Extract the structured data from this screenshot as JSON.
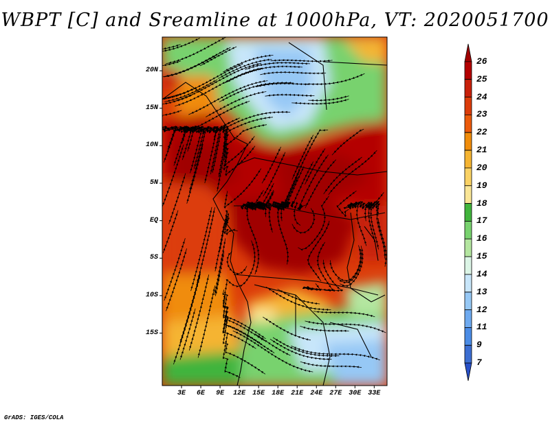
{
  "title": "WBPT [C] and Sreamline at 1000hPa, VT: 2020051700",
  "footer": "GrADS: IGES/COLA",
  "map": {
    "lon_range": [
      0,
      35
    ],
    "lat_range": [
      -22,
      24.5
    ],
    "y_axis_labels": [
      "20N",
      "15N",
      "10N",
      "5N",
      "EQ",
      "5S",
      "10S",
      "15S"
    ],
    "y_axis_values": [
      20,
      15,
      10,
      5,
      0,
      -5,
      -10,
      -15
    ],
    "x_axis_labels": [
      "3E",
      "6E",
      "9E",
      "12E",
      "15E",
      "18E",
      "21E",
      "24E",
      "27E",
      "30E",
      "33E"
    ],
    "x_axis_values": [
      3,
      6,
      9,
      12,
      15,
      18,
      21,
      24,
      27,
      30,
      33
    ]
  },
  "colorbar": {
    "labels": [
      "26",
      "25",
      "24",
      "23",
      "22",
      "21",
      "20",
      "19",
      "18",
      "17",
      "16",
      "15",
      "14",
      "13",
      "12",
      "11",
      "9",
      "7"
    ],
    "colors": [
      "#a00000",
      "#b40000",
      "#c8200a",
      "#dc3c0a",
      "#ec5a0a",
      "#f08c0a",
      "#f5b432",
      "#fad264",
      "#fae696",
      "#41b43c",
      "#78d26e",
      "#b4e6a0",
      "#dcf5e6",
      "#c8e6fa",
      "#96c8f5",
      "#6eaaf0",
      "#4b8ce6",
      "#3c6ed2",
      "#2850c8"
    ]
  },
  "colors": {
    "deep_red": "#a00000",
    "red": "#c8200a",
    "orange_red": "#dc3c0a",
    "orange": "#f08c0a",
    "yellow": "#fad264",
    "green": "#41b43c",
    "light_green": "#78d26e",
    "pale_green": "#b4e6a0",
    "light_blue": "#c8e6fa",
    "blue": "#6eaaf0"
  }
}
